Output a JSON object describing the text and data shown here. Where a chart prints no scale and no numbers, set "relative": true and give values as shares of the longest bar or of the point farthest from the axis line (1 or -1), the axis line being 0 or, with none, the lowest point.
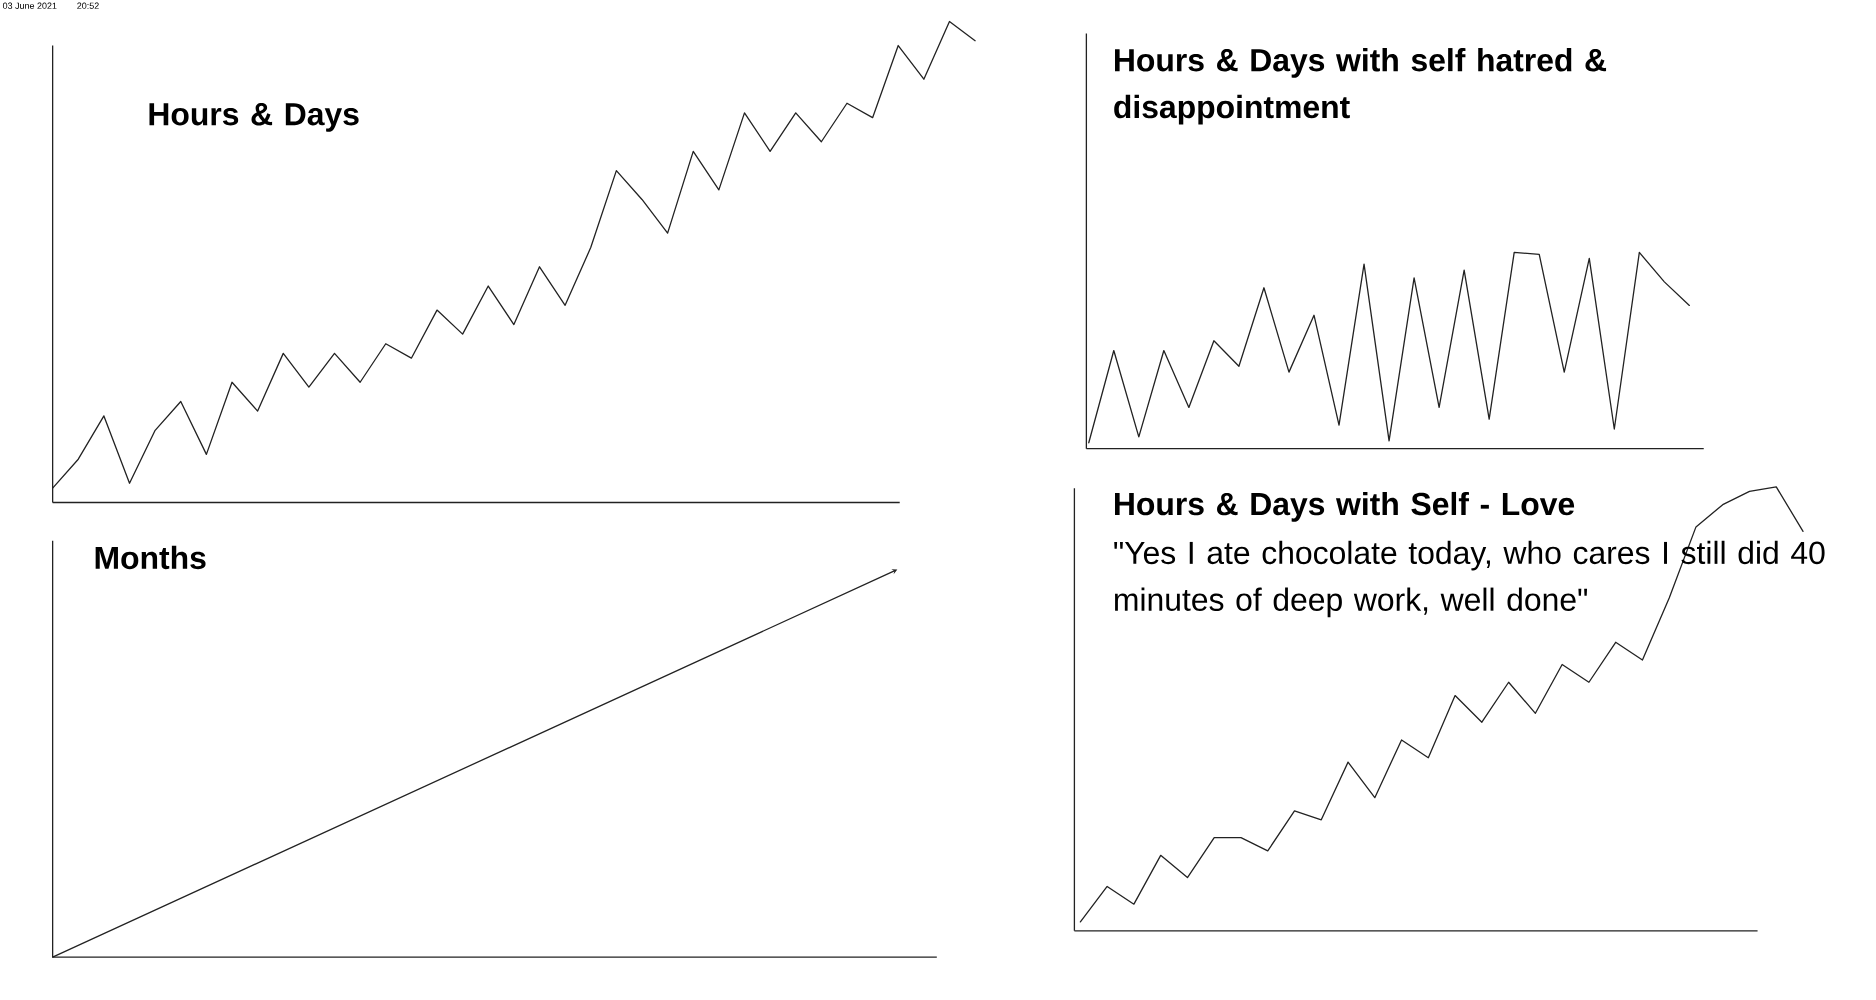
{
  "chart_data": [
    {
      "type": "line",
      "title": "Hours & Days",
      "annotations": [
        "03 June 2021",
        "20:52"
      ],
      "relative": true,
      "categories": [
        null,
        null,
        null,
        null,
        null,
        null,
        null,
        null,
        null,
        null,
        null,
        null,
        null,
        null,
        null,
        null,
        null,
        null,
        null,
        null,
        null,
        null,
        null,
        null,
        null,
        null,
        null,
        null,
        null,
        null,
        null,
        null,
        null,
        null,
        null,
        null,
        null
      ],
      "series": [
        {
          "color": "#222222",
          "values": [
            0.03,
            0.09,
            0.18,
            0.04,
            0.15,
            0.21,
            0.1,
            0.25,
            0.19,
            0.31,
            0.24,
            0.31,
            0.25,
            0.33,
            0.3,
            0.4,
            0.35,
            0.45,
            0.37,
            0.49,
            0.41,
            0.53,
            0.69,
            0.63,
            0.56,
            0.73,
            0.65,
            0.81,
            0.73,
            0.81,
            0.75,
            0.83,
            0.8,
            0.95,
            0.88,
            1.0,
            0.96
          ]
        }
      ]
    },
    {
      "type": "line",
      "title": "Hours & Days with self hatred & disappointment",
      "relative": true,
      "categories": [
        null,
        null,
        null,
        null,
        null,
        null,
        null,
        null,
        null,
        null,
        null,
        null,
        null,
        null,
        null,
        null,
        null,
        null,
        null,
        null,
        null,
        null,
        null,
        null,
        null
      ],
      "series": [
        {
          "color": "#222222",
          "values": [
            0.03,
            0.5,
            0.06,
            0.5,
            0.21,
            0.55,
            0.42,
            0.82,
            0.39,
            0.68,
            0.12,
            0.94,
            0.04,
            0.87,
            0.21,
            0.91,
            0.15,
            1.0,
            0.99,
            0.39,
            0.97,
            0.1,
            1.0,
            0.85,
            0.73
          ]
        }
      ]
    },
    {
      "type": "line",
      "title": "Months",
      "relative": true,
      "categories": [
        null,
        null
      ],
      "series": [
        {
          "color": "#222222",
          "values": [
            0,
            1
          ]
        }
      ]
    },
    {
      "type": "line",
      "title": "Hours & Days with Self - Love",
      "subtitle": "\"Yes I ate chocolate today, who cares I still did 40 minutes of deep work, well done\"",
      "relative": true,
      "categories": [
        null,
        null,
        null,
        null,
        null,
        null,
        null,
        null,
        null,
        null,
        null,
        null,
        null,
        null,
        null,
        null,
        null,
        null,
        null,
        null,
        null,
        null,
        null,
        null,
        null,
        null,
        null,
        null
      ],
      "series": [
        {
          "color": "#222222",
          "values": [
            0.02,
            0.1,
            0.06,
            0.17,
            0.12,
            0.21,
            0.21,
            0.18,
            0.27,
            0.25,
            0.38,
            0.3,
            0.43,
            0.39,
            0.53,
            0.47,
            0.56,
            0.49,
            0.6,
            0.56,
            0.65,
            0.61,
            0.75,
            0.91,
            0.96,
            0.99,
            1.0,
            0.9
          ]
        }
      ]
    }
  ]
}
